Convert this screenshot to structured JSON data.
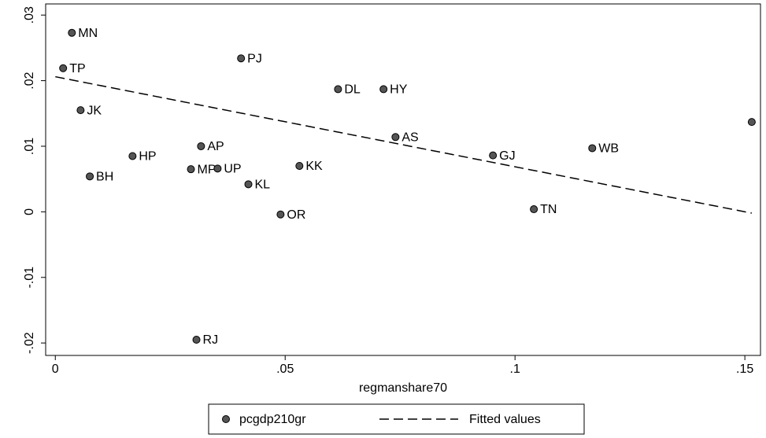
{
  "chart_data": {
    "type": "scatter",
    "x_label": "regmanshare70",
    "xlim": [
      -0.0021,
      0.1534
    ],
    "ylim": [
      -0.0219,
      0.0317
    ],
    "xticks": [
      0,
      {
        "value": 0.05,
        "label": ".05"
      },
      {
        "value": 0.1,
        "label": ".1"
      },
      {
        "value": 0.15,
        "label": ".15"
      }
    ],
    "yticks": [
      {
        "value": 0.03,
        "label": ".03"
      },
      {
        "value": 0.02,
        "label": ".02"
      },
      {
        "value": 0.01,
        "label": ".01"
      },
      0,
      {
        "value": -0.01,
        "label": "-.01"
      },
      {
        "value": -0.02,
        "label": "-.02"
      }
    ],
    "series": [
      {
        "name": "pcgdp210gr",
        "color": "#555555",
        "labels": [
          "MN",
          "TP",
          "PJ",
          "DL",
          "HY",
          "JK",
          "AS",
          "HP",
          "AP",
          "GJ",
          "WB",
          null,
          "BH",
          "MP",
          "UP",
          "KK",
          "KL",
          "OR",
          "TN",
          "RJ"
        ],
        "x": [
          0.0036,
          0.0017,
          0.0404,
          0.0615,
          0.0714,
          0.0055,
          0.074,
          0.0168,
          0.0317,
          0.0952,
          0.1168,
          0.1515,
          0.0075,
          0.0295,
          0.0353,
          0.0531,
          0.042,
          0.049,
          0.1041,
          0.0307
        ],
        "values": [
          0.0273,
          0.0219,
          0.0234,
          0.0187,
          0.0187,
          0.0155,
          0.0114,
          0.0085,
          0.01,
          0.0086,
          0.0097,
          0.0137,
          0.0054,
          0.0065,
          0.0066,
          0.007,
          0.0042,
          -0.0004,
          0.0004,
          -0.0195
        ]
      },
      {
        "name": "Fitted values",
        "color": "#000000",
        "dashed": true,
        "x": [
          0,
          0.1515
        ],
        "values": [
          0.0206,
          -0.0002
        ]
      }
    ]
  }
}
